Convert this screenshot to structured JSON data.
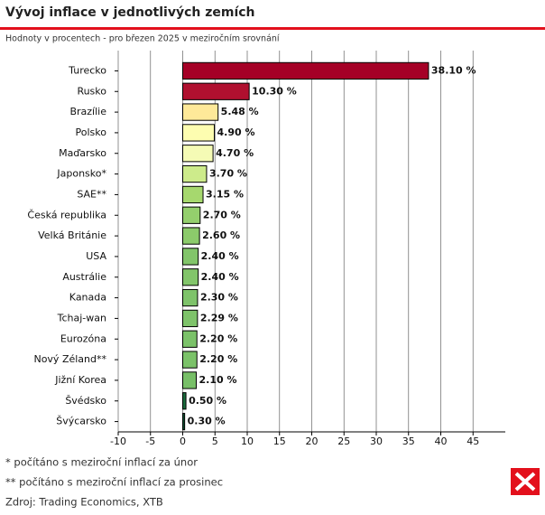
{
  "chart_data": {
    "type": "bar",
    "orientation": "horizontal",
    "title": "Vývoj inflace v jednotlivých zemích",
    "subtitle": "Hodnoty v procentech - pro březen 2025 v meziročním srovnání",
    "categories": [
      "Turecko",
      "Rusko",
      "Brazílie",
      "Polsko",
      "Maďarsko",
      "Japonsko*",
      "SAE**",
      "Česká republika",
      "Velká Británie",
      "USA",
      "Austrálie",
      "Kanada",
      "Tchaj-wan",
      "Eurozóna",
      "Nový Zéland**",
      "Jižní Korea",
      "Švédsko",
      "Švýcarsko"
    ],
    "values": [
      38.1,
      10.3,
      5.48,
      4.9,
      4.7,
      3.7,
      3.15,
      2.7,
      2.6,
      2.4,
      2.4,
      2.3,
      2.29,
      2.2,
      2.2,
      2.1,
      0.5,
      0.3
    ],
    "value_labels": [
      "38.10 %",
      "10.30 %",
      "5.48 %",
      "4.90 %",
      "4.70 %",
      "3.70 %",
      "3.15 %",
      "2.70 %",
      "2.60 %",
      "2.40 %",
      "2.40 %",
      "2.30 %",
      "2.29 %",
      "2.20 %",
      "2.20 %",
      "2.10 %",
      "0.50 %",
      "0.30 %"
    ],
    "colors": [
      "#a50026",
      "#b0102f",
      "#fee999",
      "#fdfdb0",
      "#f5fbb5",
      "#cdeb8b",
      "#a6d86e",
      "#94cf6d",
      "#8ccb6b",
      "#82c56a",
      "#82c56a",
      "#7ec36a",
      "#7ec36a",
      "#7bc269",
      "#7bc269",
      "#78bf68",
      "#1a6b3c",
      "#0e5030"
    ],
    "xlim": [
      -10,
      50
    ],
    "xticks": [
      -10,
      -5,
      0,
      5,
      10,
      15,
      20,
      25,
      30,
      35,
      40,
      45
    ],
    "grid": true,
    "footnotes": [
      "* počítáno s meziroční inflací za únor",
      "** počítáno s meziroční inflací za prosinec",
      "Zdroj: Trading Economics, XTB"
    ]
  }
}
